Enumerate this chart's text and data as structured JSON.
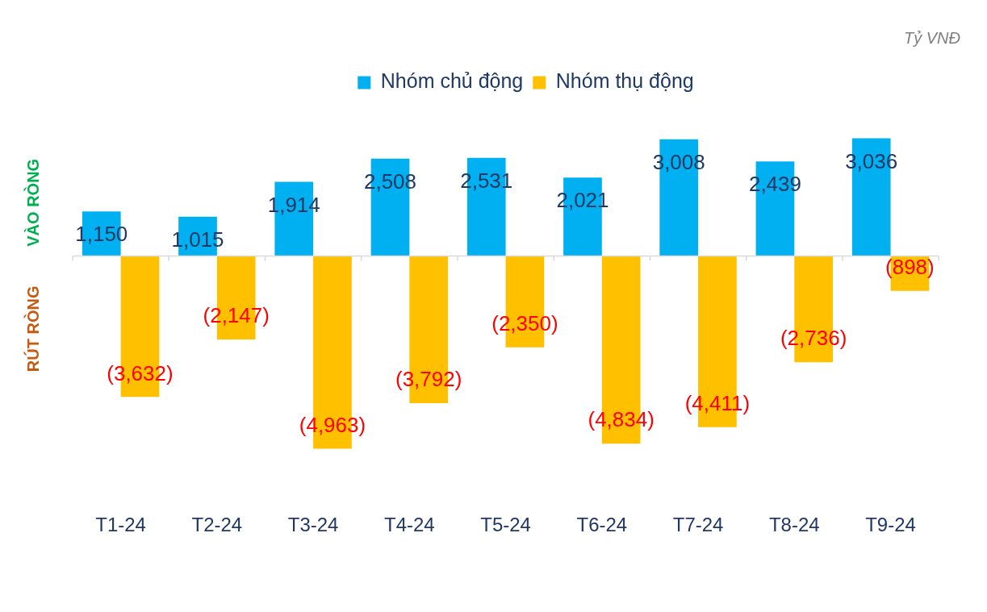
{
  "chart_data": {
    "type": "bar",
    "categories": [
      "T1-24",
      "T2-24",
      "T3-24",
      "T4-24",
      "T5-24",
      "T6-24",
      "T7-24",
      "T8-24",
      "T9-24"
    ],
    "series": [
      {
        "name": "Nhóm chủ động",
        "color": "#00b0f0",
        "values": [
          1150,
          1015,
          1914,
          2508,
          2531,
          2021,
          3008,
          2439,
          3036
        ],
        "value_labels": [
          "1,150",
          "1,015",
          "1,914",
          "2,508",
          "2,531",
          "2,021",
          "3,008",
          "2,439",
          "3,036"
        ]
      },
      {
        "name": "Nhóm thụ động",
        "color": "#ffc000",
        "values": [
          -3632,
          -2147,
          -4963,
          -3792,
          -2350,
          -4834,
          -4411,
          -2736,
          -898
        ],
        "value_labels": [
          "(3,632)",
          "(2,147)",
          "(4,963)",
          "(3,792)",
          "(2,350)",
          "(4,834)",
          "(4,411)",
          "(2,736)",
          "(898)"
        ]
      }
    ],
    "legend": "top",
    "grid": false,
    "annotations": [
      "VÀO RÒNG",
      "RÚT RÒNG",
      "Tỷ VNĐ"
    ]
  }
}
